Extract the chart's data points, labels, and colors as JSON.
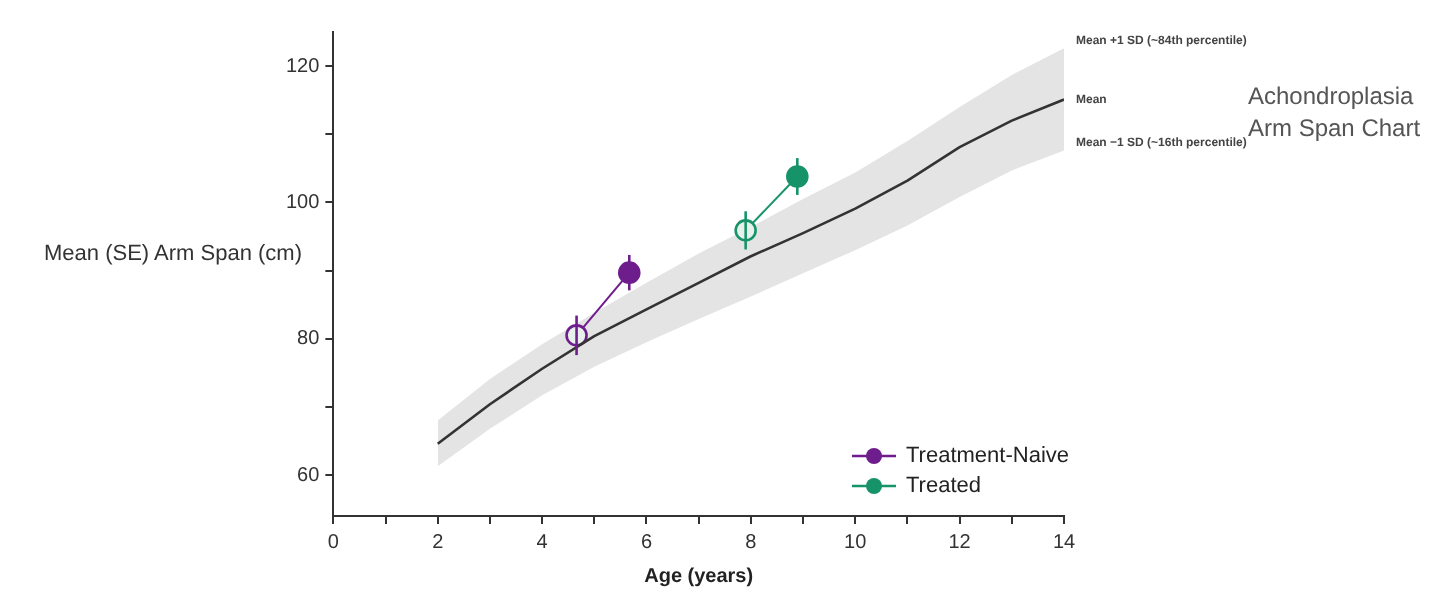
{
  "chart_data": {
    "type": "line",
    "title": "Achondroplasia Arm Span Chart",
    "xlabel": "Age (years)",
    "ylabel": "Mean (SE) Arm Span (cm)",
    "xlim": [
      0,
      14
    ],
    "xticks": [
      0,
      {
        "value": 1,
        "label": null
      },
      2,
      {
        "value": 3,
        "label": null
      },
      4,
      {
        "value": 5,
        "label": null
      },
      6,
      {
        "value": 7,
        "label": null
      },
      8,
      {
        "value": 9,
        "label": null
      },
      10,
      {
        "value": 11,
        "label": null
      },
      12,
      {
        "value": 13,
        "label": null
      },
      14
    ],
    "ylim": [
      54,
      125
    ],
    "yticks": [
      60,
      {
        "value": 70,
        "label": null
      },
      80,
      {
        "value": 90,
        "label": null
      },
      100,
      {
        "value": 110,
        "label": null
      },
      120
    ],
    "grid": false,
    "legend": "bottom right",
    "marker": "circle",
    "series": [
      {
        "name": "Mean",
        "color": "#333333",
        "marker": "none",
        "x": [
          2,
          3,
          4,
          5,
          6,
          7,
          8,
          9,
          10,
          11,
          12,
          13,
          14
        ],
        "values": [
          64.6,
          70.4,
          75.6,
          80.4,
          84.3,
          88.2,
          92.1,
          95.5,
          99.1,
          103.2,
          108.1,
          112,
          115.1
        ],
        "lower": [
          61.3,
          66.8,
          71.7,
          75.9,
          79.5,
          82.9,
          86.2,
          89.6,
          93,
          96.6,
          100.8,
          104.7,
          107.6
        ],
        "upper": [
          68,
          74.1,
          79.2,
          83.8,
          88.2,
          92.5,
          96.4,
          100.5,
          104.4,
          109,
          114,
          118.7,
          122.6
        ]
      },
      {
        "name": "Treatment-Naive",
        "color": "#6e1e8c",
        "x": [
          4.66,
          5.67
        ],
        "values": [
          80.5,
          89.7
        ],
        "errors": [
          2.9,
          2.6
        ]
      },
      {
        "name": "Treated",
        "color": "#17936a",
        "x": [
          7.9,
          8.89
        ],
        "values": [
          95.9,
          103.8
        ],
        "errors": [
          2.8,
          2.7
        ]
      }
    ],
    "annotations": [
      {
        "text": "Mean +1 SD (~84th percentile)",
        "x": 14,
        "y": 122.6
      },
      {
        "text": "Mean −1 SD (~16th percentile)",
        "x": 14,
        "y": 107.6
      }
    ]
  }
}
